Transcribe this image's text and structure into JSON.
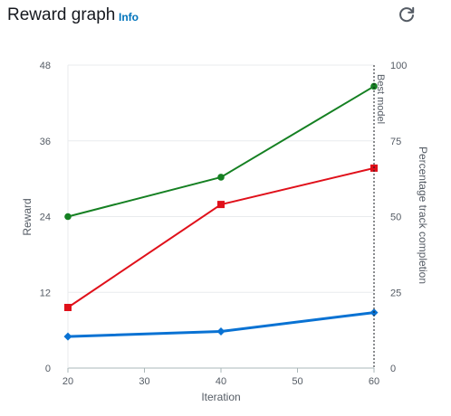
{
  "header": {
    "title": "Reward graph",
    "info_label": "Info",
    "refresh_icon": "refresh-icon"
  },
  "chart_data": {
    "type": "line",
    "x": [
      20,
      40,
      60
    ],
    "xlabel": "Iteration",
    "ylabel": "Reward",
    "y2label": "Percentage track completion",
    "xlim": [
      20,
      60
    ],
    "ylim": [
      0,
      48
    ],
    "y2lim": [
      0,
      100
    ],
    "xticks": [
      "20",
      "30",
      "40",
      "50",
      "60"
    ],
    "yticks": [
      "0",
      "12",
      "24",
      "36",
      "48"
    ],
    "y2ticks": [
      "0",
      "25",
      "50",
      "75",
      "100"
    ],
    "grid": "horizontal",
    "series": [
      {
        "axis": "left",
        "marker": "diamond",
        "color": "#0972d3",
        "values": [
          5.0,
          5.8,
          8.8
        ]
      },
      {
        "axis": "right",
        "marker": "square",
        "color": "#e0101a",
        "values": [
          20,
          54,
          66
        ]
      },
      {
        "axis": "right",
        "marker": "circle",
        "color": "#158022",
        "values": [
          50,
          63,
          93
        ]
      }
    ],
    "annotation": {
      "label": "Best model",
      "x": 60
    }
  }
}
